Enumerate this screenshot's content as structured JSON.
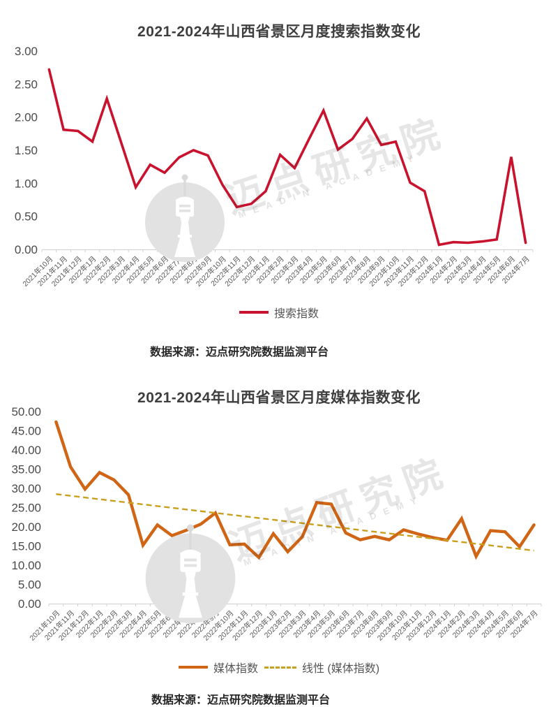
{
  "watermark": {
    "cn": "迈点研究院",
    "en": "MEADIN ACADEMY"
  },
  "colors": {
    "search_line": "#c9132e",
    "media_line": "#d06516",
    "trend_line": "#c9a01d",
    "axis": "#cfcfcf",
    "title_text": "#3e3e3e"
  },
  "charts": [
    {
      "title": "2021-2024年山西省景区月度搜索指数变化",
      "legend": [
        {
          "label": "搜索指数",
          "color": "#c9132e",
          "style": "solid"
        }
      ],
      "source": "数据来源：迈点研究院数据监测平台",
      "chart_data": {
        "type": "line",
        "title": "2021-2024年山西省景区月度搜索指数变化",
        "xlabel": "",
        "ylabel": "",
        "ylim": [
          0,
          3
        ],
        "ytick_step": 0.5,
        "grid": false,
        "legend_position": "bottom",
        "categories": [
          "2021年10月",
          "2021年11月",
          "2021年12月",
          "2022年1月",
          "2022年2月",
          "2022年3月",
          "2022年4月",
          "2022年5月",
          "2022年6月",
          "2022年7月",
          "2022年8月",
          "2022年9月",
          "2022年10月",
          "2022年11月",
          "2022年12月",
          "2023年1月",
          "2023年2月",
          "2023年3月",
          "2023年4月",
          "2023年5月",
          "2023年6月",
          "2023年7月",
          "2023年8月",
          "2023年9月",
          "2023年10月",
          "2023年11月",
          "2023年12月",
          "2024年1月",
          "2024年2月",
          "2024年3月",
          "2024年4月",
          "2024年5月",
          "2024年6月",
          "2024年7月"
        ],
        "series": [
          {
            "name": "搜索指数",
            "color": "#c9132e",
            "values": [
              2.72,
              1.81,
              1.79,
              1.63,
              2.28,
              1.61,
              0.94,
              1.28,
              1.16,
              1.39,
              1.5,
              1.42,
              0.98,
              0.64,
              0.69,
              0.88,
              1.43,
              1.23,
              1.67,
              2.1,
              1.51,
              1.67,
              1.98,
              1.58,
              1.63,
              1.01,
              0.88,
              0.07,
              0.11,
              0.1,
              0.12,
              0.15,
              1.4,
              0.1
            ]
          }
        ]
      }
    },
    {
      "title": "2021-2024年山西省景区月度媒体指数变化",
      "legend": [
        {
          "label": "媒体指数",
          "color": "#d06516",
          "style": "solid"
        },
        {
          "label": "线性 (媒体指数)",
          "color": "#c9a01d",
          "style": "dashed"
        }
      ],
      "source": "数据来源：迈点研究院数据监测平台",
      "chart_data": {
        "type": "line",
        "title": "2021-2024年山西省景区月度媒体指数变化",
        "xlabel": "",
        "ylabel": "",
        "ylim": [
          0,
          50
        ],
        "ytick_step": 5,
        "grid": false,
        "legend_position": "bottom",
        "categories": [
          "2021年10月",
          "2021年11月",
          "2021年12月",
          "2022年1月",
          "2022年2月",
          "2022年3月",
          "2022年4月",
          "2022年5月",
          "2022年6月",
          "2022年7月",
          "2022年8月",
          "2022年9月",
          "2022年10月",
          "2022年11月",
          "2022年12月",
          "2023年1月",
          "2023年2月",
          "2023年3月",
          "2023年4月",
          "2023年5月",
          "2023年6月",
          "2023年7月",
          "2023年8月",
          "2023年9月",
          "2023年10月",
          "2023年11月",
          "2023年12月",
          "2024年1月",
          "2024年2月",
          "2024年3月",
          "2024年4月",
          "2024年5月",
          "2024年6月",
          "2024年7月"
        ],
        "series": [
          {
            "name": "媒体指数",
            "color": "#d06516",
            "values": [
              47.3,
              35.6,
              29.8,
              34.1,
              32.2,
              28.3,
              15.2,
              20.5,
              17.7,
              19.1,
              20.7,
              23.6,
              15.3,
              15.5,
              12.0,
              18.2,
              13.5,
              17.4,
              26.3,
              25.9,
              18.4,
              16.6,
              17.5,
              16.6,
              19.2,
              18.1,
              17.2,
              16.5,
              22.1,
              12.3,
              19.0,
              18.7,
              14.8,
              20.5
            ]
          },
          {
            "name": "线性 (媒体指数)",
            "color": "#c9a01d",
            "trend": true,
            "values": [
              28.5,
              13.8
            ]
          }
        ]
      }
    }
  ]
}
